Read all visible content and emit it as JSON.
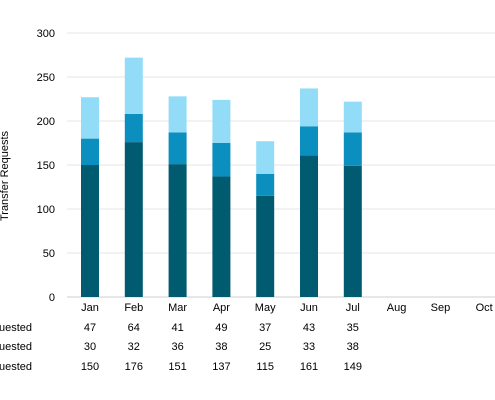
{
  "chart_data": {
    "type": "bar",
    "stacked": true,
    "categories": [
      "Jan",
      "Feb",
      "Mar",
      "Apr",
      "May",
      "Jun",
      "Jul",
      "Aug",
      "Sep",
      "Oct"
    ],
    "ylabel": "Transfer Requests",
    "ylim": [
      0,
      300
    ],
    "yticks": [
      0,
      50,
      100,
      150,
      200,
      250,
      300
    ],
    "grid": true,
    "series": [
      {
        "name": "quested",
        "color": "#005a70",
        "values": [
          150,
          176,
          151,
          137,
          115,
          161,
          149,
          null,
          null,
          null
        ]
      },
      {
        "name": "quested",
        "color": "#0a8fbf",
        "values": [
          30,
          32,
          36,
          38,
          25,
          33,
          38,
          null,
          null,
          null
        ]
      },
      {
        "name": "quested",
        "color": "#93dcf7",
        "values": [
          47,
          64,
          41,
          49,
          37,
          43,
          35,
          null,
          null,
          null
        ]
      }
    ],
    "table_rows": [
      {
        "label": "quested",
        "values": [
          "47",
          "64",
          "41",
          "49",
          "37",
          "43",
          "35",
          "",
          "",
          ""
        ]
      },
      {
        "label": "quested",
        "values": [
          "30",
          "32",
          "36",
          "38",
          "25",
          "33",
          "38",
          "",
          "",
          ""
        ]
      },
      {
        "label": "quested",
        "values": [
          "150",
          "176",
          "151",
          "137",
          "115",
          "161",
          "149",
          "",
          "",
          ""
        ]
      }
    ]
  }
}
